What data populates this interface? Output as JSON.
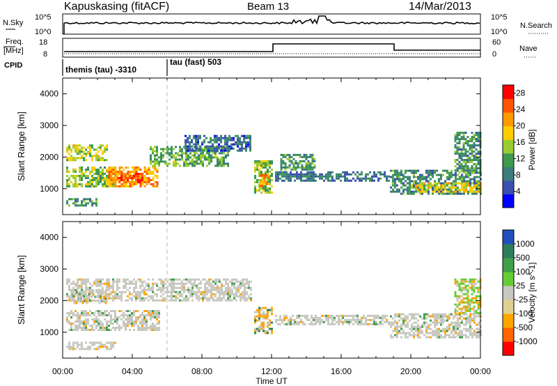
{
  "header": {
    "radar": "Kapuskasing (fitACF)",
    "beam": "Beam 13",
    "date": "14/Mar/2013"
  },
  "nsky_panel": {
    "left_label": "N.Sky",
    "left_ticks": [
      "10^5",
      "10^0"
    ],
    "right_label": "N.Search",
    "right_ticks": [
      "10^5",
      "10^0"
    ]
  },
  "freq_panel": {
    "left_label_1": "Freq.",
    "left_label_2": "[MHz]",
    "left_ticks": [
      "18",
      "8"
    ],
    "right_label": "Nave",
    "right_ticks": [
      "60",
      "0"
    ]
  },
  "cpid": {
    "label": "CPID",
    "segments": [
      {
        "name": "themis (tau)",
        "id": "-3310",
        "start_hour": 0
      },
      {
        "name": "tau (fast)",
        "id": "503",
        "start_hour": 6
      }
    ]
  },
  "chart_data": [
    {
      "type": "heatmap",
      "title": "",
      "ylabel": "Slant Range [km]",
      "xlabel": "Time UT",
      "x_ticks": [
        "00:00",
        "04:00",
        "08:00",
        "12:00",
        "16:00",
        "20:00",
        "00:00"
      ],
      "y_ticks": [
        1000,
        2000,
        3000,
        4000
      ],
      "xlim_hours": [
        0,
        24
      ],
      "ylim_km": [
        180,
        4500
      ],
      "colorbar": {
        "label": "Power [dB]",
        "ticks": [
          "4",
          "8",
          "12",
          "16",
          "20",
          "24",
          "28"
        ],
        "range": [
          0,
          30
        ],
        "colors": [
          "#0000ff",
          "#3a4fb0",
          "#3a7d7a",
          "#3e9a4e",
          "#9acd32",
          "#ffcc00",
          "#ff9900",
          "#ff5500",
          "#ff0000"
        ]
      },
      "echo_regions": [
        {
          "t0": 0.2,
          "t1": 3.0,
          "r0": 1050,
          "r1": 1700,
          "level": 14
        },
        {
          "t0": 0.2,
          "t1": 2.5,
          "r0": 1900,
          "r1": 2400,
          "level": 16
        },
        {
          "t0": 2.5,
          "t1": 5.5,
          "r0": 1100,
          "r1": 1700,
          "level": 22
        },
        {
          "t0": 3.2,
          "t1": 4.6,
          "r0": 1200,
          "r1": 1500,
          "level": 27
        },
        {
          "t0": 5.0,
          "t1": 9.5,
          "r0": 1700,
          "r1": 2350,
          "level": 12
        },
        {
          "t0": 7.0,
          "t1": 10.8,
          "r0": 2200,
          "r1": 2700,
          "level": 6
        },
        {
          "t0": 11.0,
          "t1": 12.0,
          "r0": 900,
          "r1": 1900,
          "level": 14
        },
        {
          "t0": 11.3,
          "t1": 11.8,
          "r0": 1100,
          "r1": 1450,
          "level": 22
        },
        {
          "t0": 12.2,
          "t1": 18.8,
          "r0": 1250,
          "r1": 1550,
          "level": 7
        },
        {
          "t0": 12.5,
          "t1": 14.5,
          "r0": 1600,
          "r1": 2100,
          "level": 10
        },
        {
          "t0": 18.8,
          "t1": 24.0,
          "r0": 850,
          "r1": 1600,
          "level": 9
        },
        {
          "t0": 20.0,
          "t1": 24.0,
          "r0": 900,
          "r1": 1200,
          "level": 18
        },
        {
          "t0": 22.5,
          "t1": 24.0,
          "r0": 1500,
          "r1": 2800,
          "level": 10
        },
        {
          "t0": 0.2,
          "t1": 2.0,
          "r0": 450,
          "r1": 700,
          "level": 10
        }
      ]
    },
    {
      "type": "heatmap",
      "title": "",
      "ylabel": "Slant Range [km]",
      "xlabel": "Time UT",
      "x_ticks": [
        "00:00",
        "04:00",
        "08:00",
        "12:00",
        "16:00",
        "20:00",
        "00:00"
      ],
      "y_ticks": [
        1000,
        2000,
        3000,
        4000
      ],
      "xlim_hours": [
        0,
        24
      ],
      "ylim_km": [
        180,
        4500
      ],
      "colorbar": {
        "label": "Velocity [m s^-1]",
        "ticks": [
          "1000",
          "500",
          "100",
          "25",
          "-25",
          "-100",
          "-500",
          "-1000"
        ],
        "colors": [
          "#2050c0",
          "#2e7d5a",
          "#3fa04a",
          "#66cc33",
          "#c8c8c0",
          "#e0d090",
          "#ffa500",
          "#ff6600",
          "#ff0000"
        ]
      },
      "echo_regions": [
        {
          "t0": 0.2,
          "t1": 5.5,
          "r0": 1050,
          "r1": 1700,
          "vel": "gray"
        },
        {
          "t0": 0.5,
          "t1": 2.5,
          "r0": 1950,
          "r1": 2350,
          "vel": "orange"
        },
        {
          "t0": 0.2,
          "t1": 10.8,
          "r0": 2000,
          "r1": 2700,
          "vel": "gray"
        },
        {
          "t0": 11.0,
          "t1": 12.0,
          "r0": 1000,
          "r1": 1800,
          "vel": "orange"
        },
        {
          "t0": 12.2,
          "t1": 18.8,
          "r0": 1250,
          "r1": 1550,
          "vel": "gray"
        },
        {
          "t0": 18.8,
          "t1": 24.0,
          "r0": 850,
          "r1": 1600,
          "vel": "gray"
        },
        {
          "t0": 22.5,
          "t1": 24.0,
          "r0": 1600,
          "r1": 2700,
          "vel": "green"
        },
        {
          "t0": 0.2,
          "t1": 3.0,
          "r0": 450,
          "r1": 700,
          "vel": "gray"
        }
      ]
    }
  ]
}
